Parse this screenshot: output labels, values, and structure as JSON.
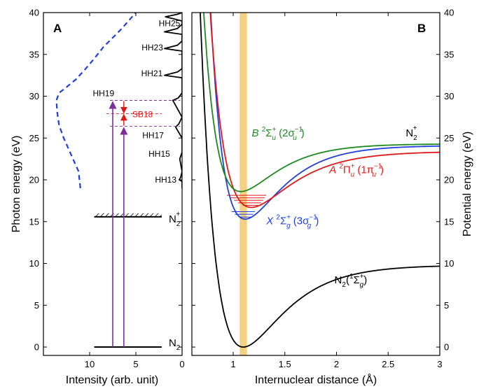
{
  "chart_data": [
    {
      "panel": "A",
      "type": "line",
      "xlabel": "Intensity (arb. unit)",
      "ylabel": "Photon energy (eV)",
      "xlim": [
        15,
        0
      ],
      "ylim": [
        -1,
        40
      ],
      "xticks": [
        10,
        5,
        0
      ],
      "yticks": [
        0,
        5,
        10,
        15,
        20,
        25,
        30,
        35,
        40
      ],
      "series": [
        {
          "style": "dashed",
          "color": "#1f3fe0",
          "x": [
            11.0,
            11.2,
            12.0,
            12.8,
            13.3,
            13.5,
            13.6,
            13.3,
            12.6,
            11.5,
            10.5,
            9.5,
            8.5,
            7.5,
            6.6,
            5.8,
            5.0
          ],
          "y": [
            19,
            21,
            23,
            25,
            26.5,
            28,
            29.5,
            30.4,
            31.0,
            32.0,
            33.2,
            34.5,
            35.9,
            37.0,
            38.0,
            39.0,
            40.0
          ]
        },
        {
          "style": "solid",
          "color": "#000000",
          "x": [
            0,
            0,
            0.3,
            0.15,
            0,
            0.25,
            0,
            0,
            0.7,
            0.35,
            0,
            1.0,
            0.4,
            0,
            0,
            1.9,
            0.5,
            0,
            0,
            1.9,
            0.5,
            0,
            0,
            1.9,
            0.5,
            0,
            0,
            1.8,
            0.5,
            0,
            0,
            0.2,
            0
          ],
          "y": [
            19,
            19.8,
            20.0,
            20.3,
            21,
            22.5,
            23.3,
            25.0,
            26.3,
            26.7,
            27.5,
            29.5,
            29.8,
            30.4,
            32.2,
            32.5,
            32.9,
            33.3,
            35.4,
            35.7,
            36.1,
            36.6,
            37.4,
            37.7,
            38.1,
            38.6,
            39.0,
            39.5,
            39.8,
            40.0,
            40.0,
            40.0,
            40.0
          ]
        }
      ],
      "harmonics": [
        {
          "label": "HH13",
          "energy": 20.0
        },
        {
          "label": "HH15",
          "energy": 23.1
        },
        {
          "label": "HH17",
          "energy": 26.4
        },
        {
          "label": "HH19",
          "energy": 29.5
        },
        {
          "label": "HH21",
          "energy": 32.7
        },
        {
          "label": "HH23",
          "energy": 35.8
        },
        {
          "label": "HH25",
          "energy": 38.7
        }
      ],
      "sideband_label": "SB18",
      "sideband_energy": 27.9,
      "levels": [
        {
          "energy": 0,
          "species": "N",
          "subscript": "2",
          "superscript": ""
        },
        {
          "energy": 15.58,
          "species": "N",
          "subscript": "2",
          "superscript": "+"
        }
      ],
      "transitions": [
        {
          "x": 7.5,
          "from": 0,
          "to": 29.5,
          "color": "#7b2f9a"
        },
        {
          "x": 6.3,
          "from": 0,
          "to": 26.4,
          "color": "#7b2f9a"
        }
      ]
    },
    {
      "panel": "B",
      "type": "line",
      "xlabel": "Internuclear distance (Å)",
      "ylabel": "Potential energy (eV)",
      "xlim": [
        0.6,
        3
      ],
      "ylim": [
        -1,
        40
      ],
      "xticks": [
        1,
        1.5,
        2,
        2.5,
        3
      ],
      "yticks": [
        0,
        5,
        10,
        15,
        20,
        25,
        30,
        35,
        40
      ],
      "shaded_band": {
        "x_center": 1.098,
        "color": "#f2c870"
      },
      "series": [
        {
          "id": "ground",
          "color": "#000000",
          "De": 9.8,
          "Te": 0.0,
          "re": 1.098,
          "a": 2.65
        },
        {
          "id": "X",
          "color": "#1f3fe0",
          "De": 8.8,
          "Te": 15.3,
          "re": 1.116,
          "a": 2.95,
          "vib_levels": [
            15.55,
            15.88,
            16.2
          ]
        },
        {
          "id": "A",
          "color": "#e01818",
          "De": 6.7,
          "Te": 16.7,
          "re": 1.175,
          "a": 2.65,
          "vib_levels": [
            16.95,
            17.25,
            17.55,
            17.85,
            18.15
          ]
        },
        {
          "id": "B",
          "color": "#1e8a1e",
          "De": 5.7,
          "Te": 18.6,
          "re": 1.074,
          "a": 3.0
        }
      ],
      "state_labels": {
        "ground": {
          "species": "N",
          "sub": "2",
          "paren_open": "(",
          "term_sup": "1",
          "term": "Σ",
          "term_sub": "g",
          "term_sup2": "+",
          "paren_close": ")"
        },
        "X": {
          "letter": "X",
          "mult": "2",
          "term": "Σ",
          "term_sub": "g",
          "term_sup": "+",
          "orbital": "(3σ",
          "orbital_sub": "g",
          "orbital_sup": "−1",
          "close": ")"
        },
        "A": {
          "letter": "A",
          "mult": "2",
          "term": "Π",
          "term_sub": "u",
          "term_sup": "+",
          "orbital": "(1π",
          "orbital_sub": "u",
          "orbital_sup": "−1",
          "close": ")"
        },
        "B": {
          "letter": "B",
          "mult": "2",
          "term": "Σ",
          "term_sub": "u",
          "term_sup": "+",
          "orbital": "(2σ",
          "orbital_sub": "u",
          "orbital_sup": "−1",
          "close": ")"
        },
        "ion": {
          "species": "N",
          "sub": "2",
          "sup": "+"
        }
      }
    }
  ]
}
